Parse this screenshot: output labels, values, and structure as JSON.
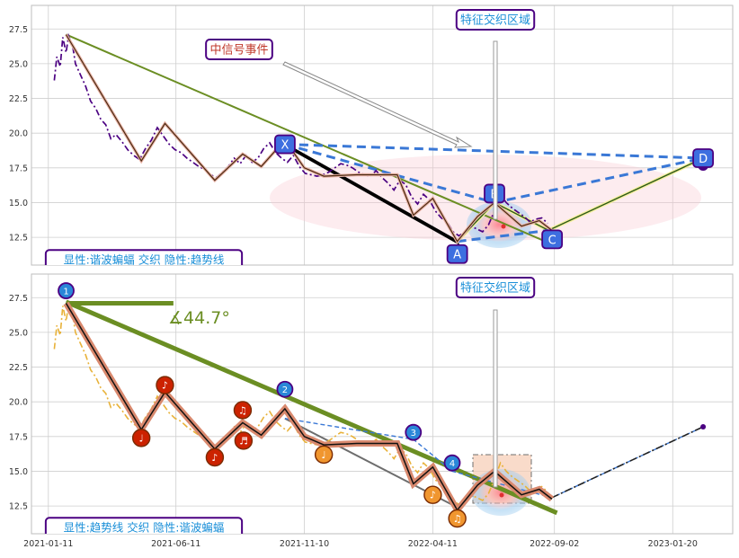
{
  "colors": {
    "panel_bg": "#ffffff",
    "grid": "#cfcfcf",
    "frame": "#bdbdbd",
    "price_top": "#4b0082",
    "price_bottom": "#e8b23a",
    "trend": "#6b8e23",
    "blue_dash": "#3a78d6",
    "box_edge": "#4b0082",
    "label_text": "#1a8fd8",
    "event_text": "#c0392b",
    "badge_fill": "#3d6fe0",
    "note_red": "#cc2200",
    "note_orange": "#f0962f"
  },
  "chart_data": [
    {
      "type": "line",
      "panel": "top",
      "x_ticks": [
        "2021-01-11",
        "2021-06-11",
        "2021-11-10",
        "2022-04-11",
        "2022-09-02",
        "2023-01-20"
      ],
      "y_ticks": [
        "27.5",
        "25.0",
        "22.5",
        "20.0",
        "17.5",
        "15.0",
        "12.5"
      ],
      "ylim": [
        10.5,
        29.2
      ],
      "xlim": [
        "2020-12-22",
        "2023-04-01"
      ],
      "grid": true,
      "series": [
        {
          "style": "dashdot",
          "x": [
            "2021-01-18",
            "2021-01-21",
            "2021-01-25",
            "2021-01-28",
            "2021-02-01",
            "2021-02-04",
            "2021-02-09",
            "2021-02-12",
            "2021-02-18",
            "2021-02-24",
            "2021-03-02",
            "2021-03-08",
            "2021-03-14",
            "2021-03-20",
            "2021-03-26",
            "2021-04-01",
            "2021-04-08",
            "2021-04-15",
            "2021-04-22",
            "2021-04-29",
            "2021-05-06",
            "2021-05-13",
            "2021-05-20",
            "2021-05-27",
            "2021-06-03",
            "2021-06-10",
            "2021-06-17",
            "2021-06-24",
            "2021-07-01",
            "2021-07-08",
            "2021-07-15",
            "2021-07-22",
            "2021-07-29",
            "2021-08-05",
            "2021-08-12",
            "2021-08-19",
            "2021-08-26",
            "2021-09-02",
            "2021-09-09",
            "2021-09-16",
            "2021-09-23",
            "2021-09-30",
            "2021-10-07",
            "2021-10-14",
            "2021-10-21",
            "2021-10-28",
            "2021-11-04",
            "2021-11-11",
            "2021-11-18",
            "2021-11-25",
            "2021-12-02",
            "2021-12-09",
            "2021-12-16",
            "2021-12-23",
            "2021-12-30",
            "2022-01-06",
            "2022-01-13",
            "2022-01-20",
            "2022-01-27",
            "2022-02-03",
            "2022-02-10",
            "2022-02-17",
            "2022-02-24",
            "2022-03-03",
            "2022-03-10",
            "2022-03-17",
            "2022-03-24",
            "2022-03-31",
            "2022-04-07",
            "2022-04-14",
            "2022-04-21",
            "2022-04-28",
            "2022-05-05",
            "2022-05-12",
            "2022-05-19",
            "2022-05-26",
            "2022-06-02",
            "2022-06-09",
            "2022-06-16",
            "2022-06-23",
            "2022-06-30",
            "2022-07-07",
            "2022-07-14",
            "2022-07-21",
            "2022-07-28",
            "2022-08-04",
            "2022-08-11",
            "2022-08-18",
            "2022-08-25"
          ],
          "y": [
            23.8,
            25.5,
            24.8,
            26.9,
            25.8,
            27.0,
            26.2,
            25.0,
            24.2,
            23.4,
            22.3,
            21.8,
            21.0,
            20.6,
            19.6,
            19.9,
            19.4,
            18.8,
            18.4,
            18.1,
            18.9,
            19.5,
            20.4,
            19.8,
            19.2,
            18.8,
            18.6,
            18.2,
            17.9,
            17.6,
            17.4,
            17.0,
            16.8,
            17.2,
            17.6,
            18.2,
            17.8,
            18.4,
            17.9,
            18.2,
            18.9,
            19.3,
            18.6,
            18.2,
            17.9,
            18.4,
            17.6,
            17.1,
            17.0,
            16.9,
            17.0,
            17.2,
            17.5,
            17.8,
            17.7,
            17.5,
            17.2,
            17.0,
            16.9,
            17.3,
            16.8,
            16.4,
            15.9,
            16.6,
            16.3,
            15.4,
            14.9,
            15.6,
            15.2,
            14.4,
            13.9,
            13.6,
            12.9,
            12.6,
            12.9,
            13.3,
            13.1,
            12.9,
            13.4,
            14.4,
            15.6,
            15.0,
            14.6,
            14.3,
            14.0,
            13.6,
            13.8,
            13.9,
            13.5
          ]
        },
        {
          "style": "zigzag",
          "x": [
            "2021-02-01",
            "2021-05-01",
            "2021-05-29",
            "2021-07-27",
            "2021-08-29",
            "2021-09-20",
            "2021-10-18",
            "2021-11-10",
            "2021-12-03",
            "2022-01-11",
            "2022-02-28",
            "2022-03-19",
            "2022-04-11",
            "2022-05-10",
            "2022-06-03",
            "2022-06-23",
            "2022-07-25",
            "2022-08-15",
            "2022-08-30"
          ],
          "y": [
            27.1,
            18.0,
            20.7,
            16.6,
            18.5,
            17.6,
            19.5,
            17.5,
            16.9,
            17.0,
            17.0,
            14.1,
            15.3,
            12.2,
            14.0,
            15.0,
            13.3,
            13.7,
            13.0
          ]
        }
      ],
      "pattern_points": [
        {
          "label": "X",
          "x": "2021-10-18",
          "y": 19.2
        },
        {
          "label": "A",
          "x": "2022-05-10",
          "y": 12.2
        },
        {
          "label": "B",
          "x": "2022-06-23",
          "y": 15.0
        },
        {
          "label": "C",
          "x": "2022-08-26",
          "y": 13.0
        },
        {
          "label": "D",
          "x": "2023-02-25",
          "y": 18.2
        }
      ],
      "annotations": [
        "中信号事件",
        "特征交织区域",
        "显性:谐波蝙蝠 交织 隐性:趋势线"
      ]
    },
    {
      "type": "line",
      "panel": "bottom",
      "x_ticks": [
        "2021-01-11",
        "2021-06-11",
        "2021-11-10",
        "2022-04-11",
        "2022-09-02",
        "2023-01-20"
      ],
      "y_ticks": [
        "27.5",
        "25.0",
        "22.5",
        "20.0",
        "17.5",
        "15.0",
        "12.5"
      ],
      "ylim": [
        10.5,
        29.2
      ],
      "xlim": [
        "2020-12-22",
        "2023-04-01"
      ],
      "grid": true,
      "series": [
        {
          "style": "dashdot",
          "x": [
            "2021-01-18",
            "2021-01-21",
            "2021-01-25",
            "2021-01-28",
            "2021-02-01",
            "2021-02-04",
            "2021-02-09",
            "2021-02-12",
            "2021-02-18",
            "2021-02-24",
            "2021-03-02",
            "2021-03-08",
            "2021-03-14",
            "2021-03-20",
            "2021-03-26",
            "2021-04-01",
            "2021-04-08",
            "2021-04-15",
            "2021-04-22",
            "2021-04-29",
            "2021-05-06",
            "2021-05-13",
            "2021-05-20",
            "2021-05-27",
            "2021-06-03",
            "2021-06-10",
            "2021-06-17",
            "2021-06-24",
            "2021-07-01",
            "2021-07-08",
            "2021-07-15",
            "2021-07-22",
            "2021-07-29",
            "2021-08-05",
            "2021-08-12",
            "2021-08-19",
            "2021-08-26",
            "2021-09-02",
            "2021-09-09",
            "2021-09-16",
            "2021-09-23",
            "2021-09-30",
            "2021-10-07",
            "2021-10-14",
            "2021-10-21",
            "2021-10-28",
            "2021-11-04",
            "2021-11-11",
            "2021-11-18",
            "2021-11-25",
            "2021-12-02",
            "2021-12-09",
            "2021-12-16",
            "2021-12-23",
            "2021-12-30",
            "2022-01-06",
            "2022-01-13",
            "2022-01-20",
            "2022-01-27",
            "2022-02-03",
            "2022-02-10",
            "2022-02-17",
            "2022-02-24",
            "2022-03-03",
            "2022-03-10",
            "2022-03-17",
            "2022-03-24",
            "2022-03-31",
            "2022-04-07",
            "2022-04-14",
            "2022-04-21",
            "2022-04-28",
            "2022-05-05",
            "2022-05-12",
            "2022-05-19",
            "2022-05-26",
            "2022-06-02",
            "2022-06-09",
            "2022-06-16",
            "2022-06-23",
            "2022-06-30",
            "2022-07-07",
            "2022-07-14",
            "2022-07-21",
            "2022-07-28",
            "2022-08-04",
            "2022-08-11",
            "2022-08-18",
            "2022-08-25"
          ],
          "y": [
            23.8,
            25.5,
            24.8,
            26.9,
            25.8,
            27.0,
            26.2,
            25.0,
            24.2,
            23.4,
            22.3,
            21.8,
            21.0,
            20.6,
            19.6,
            19.9,
            19.4,
            18.8,
            18.4,
            18.1,
            18.9,
            19.5,
            20.4,
            19.8,
            19.2,
            18.8,
            18.6,
            18.2,
            17.9,
            17.6,
            17.4,
            17.0,
            16.8,
            17.2,
            17.6,
            18.2,
            17.8,
            18.4,
            17.9,
            18.2,
            18.9,
            19.3,
            18.6,
            18.2,
            17.9,
            18.4,
            17.6,
            17.1,
            17.0,
            16.9,
            17.0,
            17.2,
            17.5,
            17.8,
            17.7,
            17.5,
            17.2,
            17.0,
            16.9,
            17.3,
            16.8,
            16.4,
            15.9,
            16.6,
            16.3,
            15.4,
            14.9,
            15.6,
            15.2,
            14.4,
            13.9,
            13.6,
            12.9,
            12.6,
            12.9,
            13.3,
            13.1,
            12.9,
            13.4,
            14.4,
            15.6,
            15.0,
            14.6,
            14.3,
            14.0,
            13.6,
            13.8,
            13.9,
            13.5
          ]
        },
        {
          "style": "zigzag",
          "x": [
            "2021-02-01",
            "2021-05-01",
            "2021-05-29",
            "2021-07-27",
            "2021-08-29",
            "2021-09-20",
            "2021-10-18",
            "2021-11-10",
            "2021-12-03",
            "2022-01-11",
            "2022-02-28",
            "2022-03-19",
            "2022-04-11",
            "2022-05-10",
            "2022-06-03",
            "2022-06-23",
            "2022-07-25",
            "2022-08-15",
            "2022-08-30"
          ],
          "y": [
            27.1,
            18.0,
            20.7,
            16.6,
            18.5,
            17.6,
            19.5,
            17.5,
            16.9,
            17.0,
            17.0,
            14.1,
            15.3,
            12.2,
            14.0,
            15.0,
            13.3,
            13.7,
            13.0
          ]
        }
      ],
      "numbered_points": [
        {
          "label": "1",
          "x": "2021-02-01",
          "y": 28.0
        },
        {
          "label": "2",
          "x": "2021-10-18",
          "y": 20.9
        },
        {
          "label": "3",
          "x": "2022-03-19",
          "y": 17.8
        },
        {
          "label": "4",
          "x": "2022-05-04",
          "y": 15.6
        }
      ],
      "note_markers": [
        {
          "glyph": "♩",
          "x": "2021-05-01",
          "y": 17.4,
          "color": "red"
        },
        {
          "glyph": "♪",
          "x": "2021-05-29",
          "y": 21.2,
          "color": "red"
        },
        {
          "glyph": "♪",
          "x": "2021-07-27",
          "y": 16.0,
          "color": "red"
        },
        {
          "glyph": "♫",
          "x": "2021-08-29",
          "y": 19.4,
          "color": "red"
        },
        {
          "glyph": "♬",
          "x": "2021-08-30",
          "y": 17.2,
          "color": "red"
        },
        {
          "glyph": "♩",
          "x": "2021-12-03",
          "y": 16.2,
          "color": "orange"
        },
        {
          "glyph": "♪",
          "x": "2022-04-11",
          "y": 13.3,
          "color": "orange"
        },
        {
          "glyph": "♫",
          "x": "2022-05-10",
          "y": 11.6,
          "color": "orange"
        }
      ],
      "angle_label": "∡44.7°",
      "annotations": [
        "特征交织区域",
        "显性:趋势线 交织 隐性:谐波蝙蝠"
      ]
    }
  ]
}
